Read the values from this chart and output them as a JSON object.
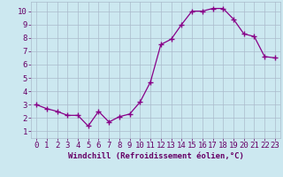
{
  "x": [
    0,
    1,
    2,
    3,
    4,
    5,
    6,
    7,
    8,
    9,
    10,
    11,
    12,
    13,
    14,
    15,
    16,
    17,
    18,
    19,
    20,
    21,
    22,
    23
  ],
  "y": [
    3.0,
    2.7,
    2.5,
    2.2,
    2.2,
    1.4,
    2.5,
    1.7,
    2.1,
    2.3,
    3.2,
    4.7,
    7.5,
    7.9,
    9.0,
    10.0,
    10.0,
    10.2,
    10.2,
    9.4,
    8.3,
    8.1,
    6.6,
    6.5
  ],
  "xlabel": "Windchill (Refroidissement éolien,°C)",
  "xlim": [
    -0.5,
    23.5
  ],
  "ylim": [
    0.5,
    10.7
  ],
  "yticks": [
    1,
    2,
    3,
    4,
    5,
    6,
    7,
    8,
    9,
    10
  ],
  "xticks": [
    0,
    1,
    2,
    3,
    4,
    5,
    6,
    7,
    8,
    9,
    10,
    11,
    12,
    13,
    14,
    15,
    16,
    17,
    18,
    19,
    20,
    21,
    22,
    23
  ],
  "line_color": "#880088",
  "marker_color": "#880088",
  "bg_color": "#cce8f0",
  "grid_color": "#aabbcc",
  "tick_label_color": "#660066",
  "xlabel_color": "#660066",
  "xlabel_fontsize": 6.5,
  "tick_fontsize": 6.5
}
